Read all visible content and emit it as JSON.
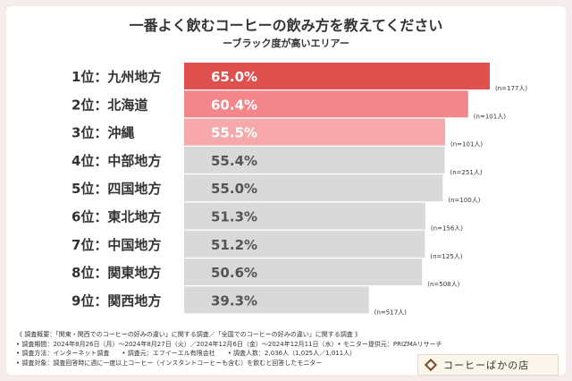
{
  "header": {
    "title": "一番よく飲むコーヒーの飲み方を教えてください",
    "subtitle": "ーブラック度が高いエリアー"
  },
  "colors": {
    "rank1": "#e0504f",
    "rank2": "#f2868a",
    "rank3": "#f7a8ab",
    "other": "#d9d9d9",
    "value_text_highlight": "#ffffff",
    "value_text_other": "#555555"
  },
  "chart_data": {
    "type": "bar",
    "orientation": "horizontal",
    "title": "一番よく飲むコーヒーの飲み方を教えてください",
    "subtitle": "ーブラック度が高いエリアー",
    "categories": [
      "1位：九州地方",
      "2位：北海道",
      "3位：沖縄",
      "4位：中部地方",
      "5位：四国地方",
      "6位：東北地方",
      "7位：中国地方",
      "8位：関東地方",
      "9位：関西地方"
    ],
    "values": [
      65.0,
      60.4,
      55.5,
      55.4,
      55.0,
      51.3,
      51.2,
      50.6,
      39.3
    ],
    "value_labels": [
      "65.0%",
      "60.4%",
      "55.5%",
      "55.4%",
      "55.0%",
      "51.3%",
      "51.2%",
      "50.6%",
      "39.3%"
    ],
    "sample_sizes": [
      "(n=177人)",
      "(n=101人)",
      "(n=101人)",
      "(n=251人)",
      "(n=100人)",
      "(n=156人)",
      "(n=125人)",
      "(n=508人)",
      "(n=517人)"
    ],
    "unit": "%",
    "xlim": [
      0,
      65
    ],
    "grid": false,
    "legend": "none"
  },
  "notes": {
    "line1": "《 調査概要：「関東・関西でのコーヒーの好みの違い」に関する調査／「全国でのコーヒーの好みの違い」に関する調査 》",
    "line2": "• 調査期間：2024年8月26日（月）～2024年8月27日（火）／2024年12月6日（金）～2024年12月11日（水）• モニター提供元：PRIZMAリサーチ",
    "line3": "• 調査方法：インターネット調査　　• 調査元：エフイーエル有限会社　　• 調査人数：2,036人（1,025人／1,011人）",
    "line4": "• 調査対象：調査回答時に週に一度以上コーヒー（インスタントコーヒーも含む）を飲むと回答したモニター"
  },
  "logo": {
    "text": "コーヒーばかの店",
    "icon": "coffee-bean-diamond-icon"
  }
}
